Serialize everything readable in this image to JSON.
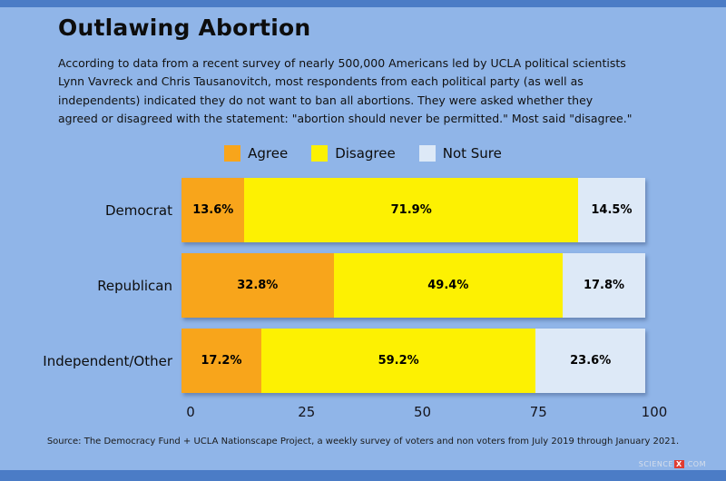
{
  "page": {
    "title": "Outlawing Abortion",
    "description": "According to data from a recent survey of nearly 500,000 Americans led by UCLA political scientists\nLynn Vavreck and Chris Tausanovitch, most respondents from each political party (as well as\nindependents) indicated they do not want to ban all abortions. They were asked whether they\nagreed or disagreed with the statement: \"abortion should never be permitted.\" Most said \"disagree.\"",
    "source": "Source: The Democracy Fund + UCLA Nationscape Project, a weekly survey of voters and non voters from July 2019 through January 2021.",
    "watermark": {
      "prefix": "SCIENCE",
      "highlight": "X",
      "suffix": ".COM"
    }
  },
  "colors": {
    "background": "#90B5E8",
    "border_strip": "#4B7CC6",
    "agree": "#F8A51B",
    "disagree": "#FDF102",
    "not_sure": "#DDE9F7",
    "watermark_red": "#E03C31"
  },
  "chart_data": {
    "type": "bar",
    "orientation": "horizontal",
    "stacked": true,
    "unit": "%",
    "title": "Outlawing Abortion",
    "categories": [
      "Democrat",
      "Republican",
      "Independent/Other"
    ],
    "series": [
      {
        "name": "Agree",
        "color": "#F8A51B",
        "values": [
          13.6,
          32.8,
          17.2
        ]
      },
      {
        "name": "Disagree",
        "color": "#FDF102",
        "values": [
          71.9,
          49.4,
          59.2
        ]
      },
      {
        "name": "Not Sure",
        "color": "#DDE9F7",
        "values": [
          14.5,
          17.8,
          23.6
        ]
      }
    ],
    "x_ticks": [
      "0",
      "25",
      "50",
      "75",
      "100"
    ],
    "xlim": [
      0,
      100
    ],
    "legend_position": "top",
    "grid": false
  }
}
